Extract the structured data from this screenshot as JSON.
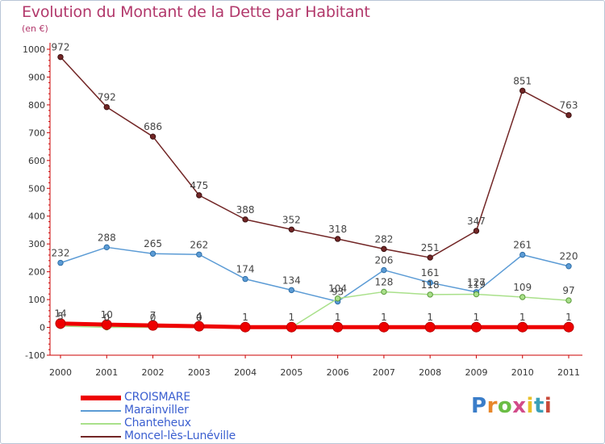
{
  "title": "Evolution du Montant de la Dette par Habitant",
  "subtitle": "(en €)",
  "logo": {
    "text": "Proxiti"
  },
  "chart_data": {
    "type": "line",
    "x": [
      "2000",
      "2001",
      "2002",
      "2003",
      "2004",
      "2005",
      "2006",
      "2007",
      "2008",
      "2009",
      "2010",
      "2011"
    ],
    "ylim": [
      -100,
      1000
    ],
    "yticks": [
      -100,
      0,
      100,
      200,
      300,
      400,
      500,
      600,
      700,
      800,
      900,
      1000
    ],
    "grid": false,
    "legend_position": "bottom-left",
    "series": [
      {
        "name": "CROISMARE",
        "color": "#ee0000",
        "values": [
          14,
          10,
          7,
          4,
          1,
          1,
          1,
          1,
          1,
          1,
          1,
          1
        ],
        "labels": [
          "14",
          "10",
          "7",
          "4",
          "1",
          "1",
          "1",
          "1",
          "1",
          "1",
          "1",
          "1"
        ]
      },
      {
        "name": "Marainviller",
        "color": "#5b9bd5",
        "values": [
          232,
          288,
          265,
          262,
          174,
          134,
          93,
          206,
          161,
          127,
          261,
          220
        ],
        "labels": [
          "232",
          "288",
          "265",
          "262",
          "174",
          "134",
          "93",
          "206",
          "161",
          "127",
          "261",
          "220"
        ]
      },
      {
        "name": "Chanteheux",
        "color": "#a9e08a",
        "values": [
          5,
          0,
          0,
          0,
          0,
          0,
          104,
          128,
          118,
          119,
          109,
          97
        ],
        "labels": [
          "5",
          "0",
          "0",
          "0",
          "",
          "",
          "104",
          "128",
          "118",
          "119",
          "109",
          "97"
        ]
      },
      {
        "name": "Moncel-lès-Lunéville",
        "color": "#722626",
        "values": [
          972,
          792,
          686,
          475,
          388,
          352,
          318,
          282,
          251,
          347,
          851,
          763
        ],
        "labels": [
          "972",
          "792",
          "686",
          "475",
          "388",
          "352",
          "318",
          "282",
          "251",
          "347",
          "851",
          "763"
        ]
      }
    ]
  }
}
